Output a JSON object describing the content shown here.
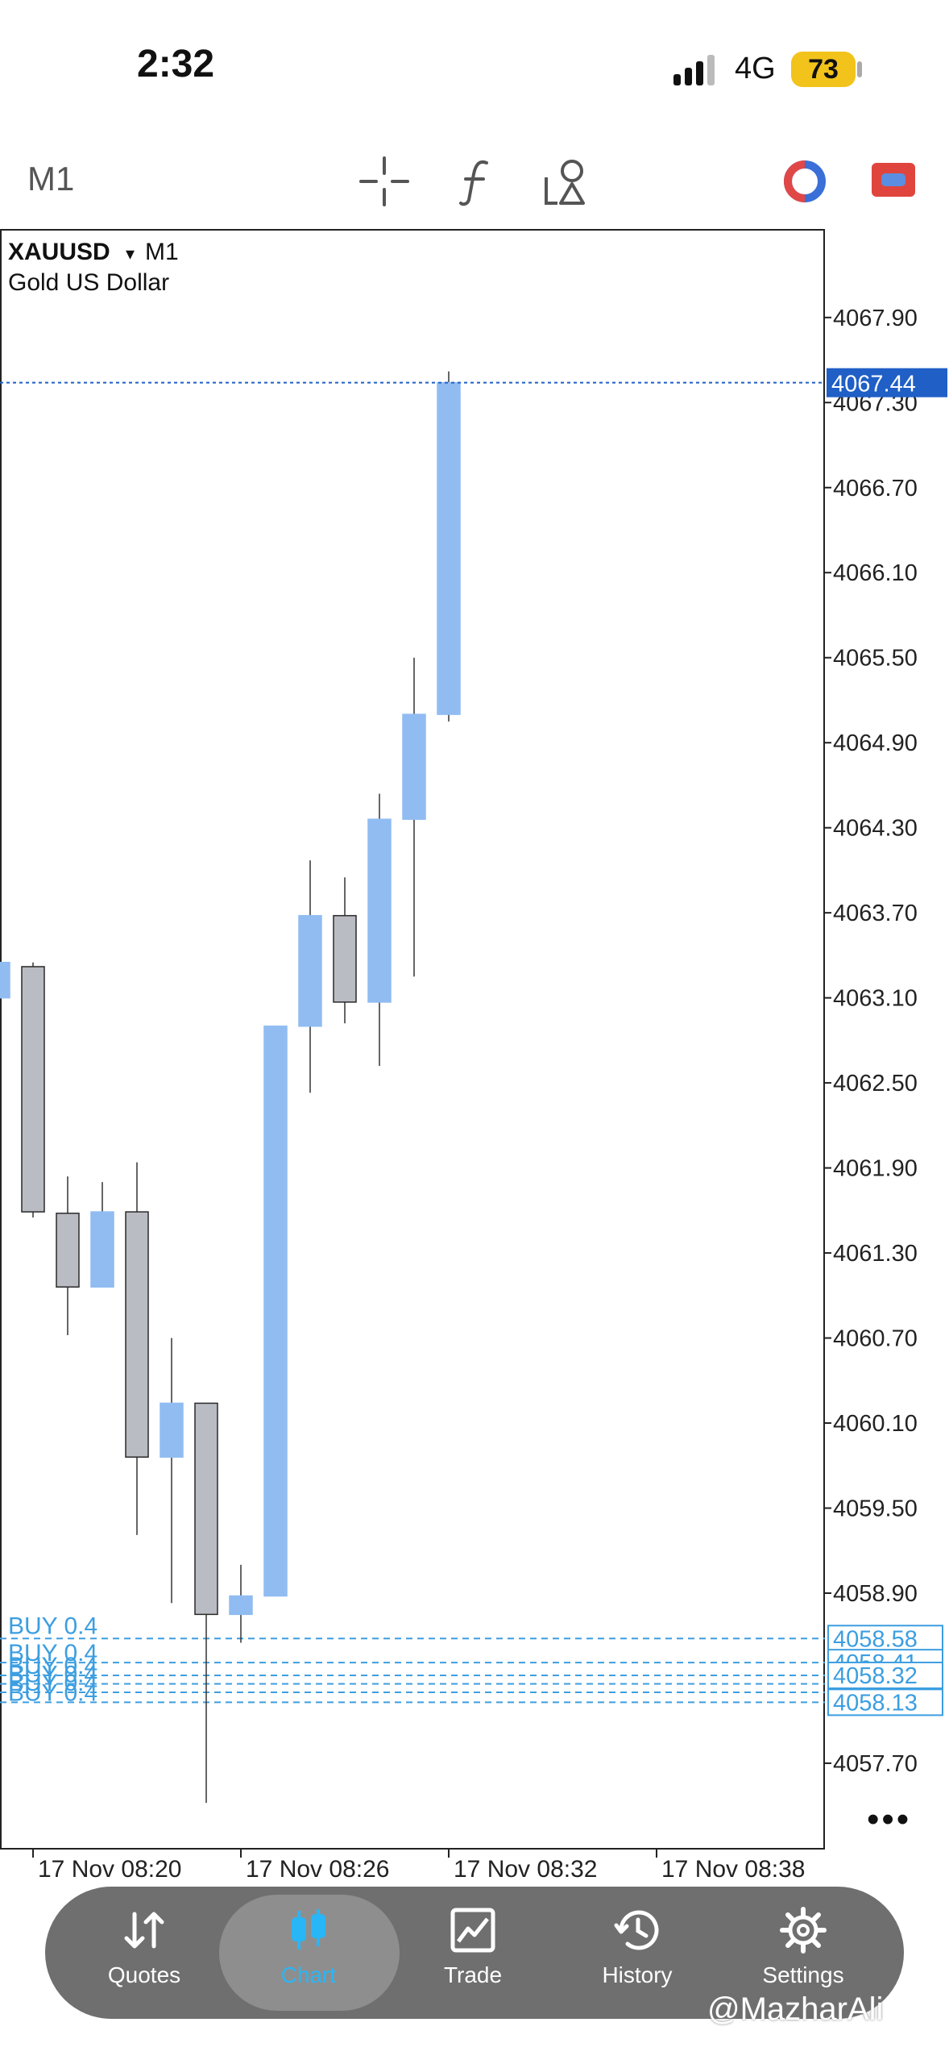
{
  "status_bar": {
    "time": "2:32",
    "network": "4G",
    "battery": "73"
  },
  "toolbar": {
    "timeframe": "M1",
    "icons": [
      "crosshair-icon",
      "function-icon",
      "objects-icon",
      "ring-icon",
      "account-icon"
    ]
  },
  "chart": {
    "symbol": "XAUUSD",
    "symbol_arrow": "▾",
    "timeframe": "M1",
    "description": "Gold US Dollar",
    "current_price": "4067.44",
    "more": "•••"
  },
  "chart_data": {
    "type": "candlestick",
    "symbol": "XAUUSD",
    "timeframe": "M1",
    "y_ticks": [
      "4067.90",
      "4067.30",
      "4066.70",
      "4066.10",
      "4065.50",
      "4064.90",
      "4064.30",
      "4063.70",
      "4063.10",
      "4062.50",
      "4061.90",
      "4061.30",
      "4060.70",
      "4060.10",
      "4059.50",
      "4058.90",
      "4057.70"
    ],
    "x_ticks": [
      "17 Nov 08:20",
      "17 Nov 08:26",
      "17 Nov 08:32",
      "17 Nov 08:38"
    ],
    "ylim": [
      4056.9,
      4068.2
    ],
    "current_price": 4067.44,
    "candles": [
      {
        "idx": -1,
        "open": 4063.1,
        "high": 4063.35,
        "low": 4063.05,
        "close": 4063.35,
        "bull": true
      },
      {
        "idx": 0,
        "open": 4063.32,
        "high": 4063.35,
        "low": 4061.55,
        "close": 4061.59,
        "bull": false
      },
      {
        "idx": 1,
        "open": 4061.58,
        "high": 4061.84,
        "low": 4060.72,
        "close": 4061.06,
        "bull": false
      },
      {
        "idx": 2,
        "open": 4061.06,
        "high": 4061.8,
        "low": 4061.06,
        "close": 4061.59,
        "bull": true
      },
      {
        "idx": 3,
        "open": 4061.59,
        "high": 4061.94,
        "low": 4059.31,
        "close": 4059.86,
        "bull": false
      },
      {
        "idx": 4,
        "open": 4059.86,
        "high": 4060.7,
        "low": 4058.83,
        "close": 4060.24,
        "bull": true
      },
      {
        "idx": 5,
        "open": 4060.24,
        "high": 4060.24,
        "low": 4057.42,
        "close": 4058.75,
        "bull": false
      },
      {
        "idx": 6,
        "open": 4058.75,
        "high": 4059.1,
        "low": 4058.55,
        "close": 4058.88,
        "bull": true
      },
      {
        "idx": 7,
        "open": 4058.88,
        "high": 4062.9,
        "low": 4058.88,
        "close": 4062.9,
        "bull": true
      },
      {
        "idx": 8,
        "open": 4062.9,
        "high": 4064.07,
        "low": 4062.43,
        "close": 4063.68,
        "bull": true
      },
      {
        "idx": 9,
        "open": 4063.68,
        "high": 4063.95,
        "low": 4062.92,
        "close": 4063.07,
        "bull": false
      },
      {
        "idx": 10,
        "open": 4063.07,
        "high": 4064.54,
        "low": 4062.62,
        "close": 4064.36,
        "bull": true
      },
      {
        "idx": 11,
        "open": 4064.36,
        "high": 4065.5,
        "low": 4063.25,
        "close": 4065.1,
        "bull": true
      },
      {
        "idx": 12,
        "open": 4065.1,
        "high": 4067.52,
        "low": 4065.05,
        "close": 4067.44,
        "bull": true
      }
    ],
    "order_lines": [
      {
        "label": "BUY 0.4",
        "price": 4058.58
      },
      {
        "label": "BUY 0.4",
        "price": 4058.41
      },
      {
        "label": "BUY 0.4",
        "price": 4058.32
      },
      {
        "label": "BUY 0.4",
        "price": 4058.26
      },
      {
        "label": "BUY 0.4",
        "price": 4058.2
      },
      {
        "label": "BUY 0.4",
        "price": 4058.13
      }
    ],
    "order_price_labels": [
      "4058.58",
      "4058.41",
      "4058.32",
      "4058.13"
    ],
    "colors": {
      "bull": "#90bcf2",
      "bear": "#b9bcc3",
      "outline": "#2a2a2a",
      "price_line": "#1f5fc6",
      "order": "#3d9ee0"
    }
  },
  "nav": {
    "items": [
      {
        "label": "Quotes",
        "icon": "arrows-icon"
      },
      {
        "label": "Chart",
        "icon": "candles-icon"
      },
      {
        "label": "Trade",
        "icon": "trend-icon"
      },
      {
        "label": "History",
        "icon": "clock-icon"
      },
      {
        "label": "Settings",
        "icon": "gear-icon"
      }
    ]
  },
  "watermark": "@MazharAli"
}
